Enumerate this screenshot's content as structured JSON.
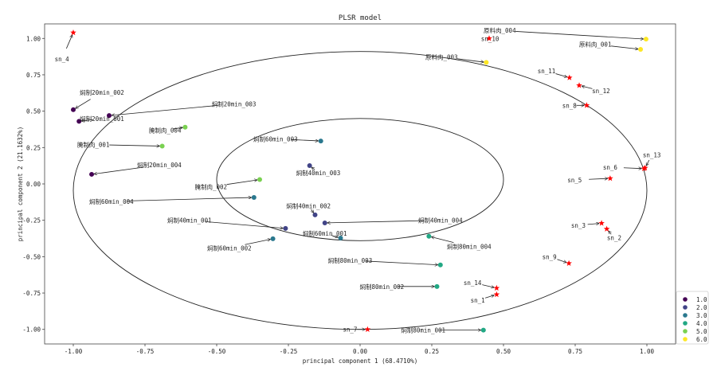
{
  "chart_data": {
    "type": "scatter",
    "title": "PLSR model",
    "xlabel": "principal component 1 (68.4710%)",
    "ylabel": "principal component 2 (21.1632%)",
    "xlim": [
      -1.1,
      1.1
    ],
    "ylim": [
      -1.1,
      1.1
    ],
    "xticks": [
      -1.0,
      -0.75,
      -0.5,
      -0.25,
      0.0,
      0.25,
      0.5,
      0.75,
      1.0
    ],
    "xtick_labels": [
      "-1.00",
      "-0.75",
      "-0.50",
      "-0.25",
      "0.00",
      "0.25",
      "0.50",
      "0.75",
      "1.00"
    ],
    "yticks": [
      -1.0,
      -0.75,
      -0.5,
      -0.25,
      0.0,
      0.25,
      0.5,
      0.75,
      1.0
    ],
    "ytick_labels": [
      "-1.00",
      "-0.75",
      "-0.50",
      "-0.25",
      "0.00",
      "0.25",
      "0.50",
      "0.75",
      "1.00"
    ],
    "grid": false,
    "legend_position": "outside-bottom-right",
    "legend": [
      {
        "label": "1.0",
        "color": "#440154"
      },
      {
        "label": "2.0",
        "color": "#414487"
      },
      {
        "label": "3.0",
        "color": "#2a788e"
      },
      {
        "label": "4.0",
        "color": "#22a884"
      },
      {
        "label": "5.0",
        "color": "#7ad151"
      },
      {
        "label": "6.0",
        "color": "#fde725"
      }
    ],
    "ellipses": [
      {
        "cx": 0.0,
        "cy": -0.045,
        "rx": 1.0,
        "ry": 0.955
      },
      {
        "cx": 0.0,
        "cy": 0.03,
        "rx": 0.5,
        "ry": 0.42
      }
    ],
    "samples": [
      {
        "name": "焖制20min_002",
        "group": 1,
        "x": -1.0,
        "y": 0.51,
        "lx": -0.9,
        "ly": 0.63
      },
      {
        "name": "焖制20min_001",
        "group": 1,
        "x": -0.98,
        "y": 0.43,
        "lx": -0.9,
        "ly": 0.45
      },
      {
        "name": "焖制20min_003",
        "group": 1,
        "x": -0.875,
        "y": 0.47,
        "lx": -0.44,
        "ly": 0.55
      },
      {
        "name": "焖制20min_004",
        "group": 1,
        "x": -0.936,
        "y": 0.066,
        "lx": -0.7,
        "ly": 0.13
      },
      {
        "name": "焖制40min_003",
        "group": 2,
        "x": -0.176,
        "y": 0.126,
        "lx": -0.146,
        "ly": 0.077
      },
      {
        "name": "焖制40min_002",
        "group": 2,
        "x": -0.157,
        "y": -0.213,
        "lx": -0.18,
        "ly": -0.15
      },
      {
        "name": "焖制40min_004",
        "group": 2,
        "x": -0.123,
        "y": -0.268,
        "lx": 0.28,
        "ly": -0.25
      },
      {
        "name": "焖制40min_001",
        "group": 2,
        "x": -0.26,
        "y": -0.306,
        "lx": -0.595,
        "ly": -0.25
      },
      {
        "name": "焖制60min_003",
        "group": 3,
        "x": -0.137,
        "y": 0.295,
        "lx": -0.295,
        "ly": 0.31
      },
      {
        "name": "焖制60min_004",
        "group": 3,
        "x": -0.37,
        "y": -0.093,
        "lx": -0.867,
        "ly": -0.12
      },
      {
        "name": "焖制60min_002",
        "group": 3,
        "x": -0.304,
        "y": -0.377,
        "lx": -0.456,
        "ly": -0.44
      },
      {
        "name": "焖制60min_001",
        "group": 3,
        "x": -0.068,
        "y": -0.372,
        "lx": -0.123,
        "ly": -0.34
      },
      {
        "name": "焖制80min_004",
        "group": 4,
        "x": 0.24,
        "y": -0.36,
        "lx": 0.38,
        "ly": -0.43
      },
      {
        "name": "焖制80min_003",
        "group": 4,
        "x": 0.28,
        "y": -0.557,
        "lx": -0.035,
        "ly": -0.525
      },
      {
        "name": "焖制80min_002",
        "group": 4,
        "x": 0.268,
        "y": -0.705,
        "lx": 0.076,
        "ly": -0.705
      },
      {
        "name": "焖制80min_001",
        "group": 4,
        "x": 0.43,
        "y": -1.005,
        "lx": 0.22,
        "ly": -1.005
      },
      {
        "name": "腌制肉_004",
        "group": 5,
        "x": -0.61,
        "y": 0.39,
        "lx": -0.68,
        "ly": 0.37
      },
      {
        "name": "腌制肉_001",
        "group": 5,
        "x": -0.69,
        "y": 0.26,
        "lx": -0.93,
        "ly": 0.27
      },
      {
        "name": "腌制肉_002",
        "group": 5,
        "x": -0.35,
        "y": 0.03,
        "lx": -0.52,
        "ly": -0.02
      },
      {
        "name": "原料肉_004",
        "group": 6,
        "x": 0.997,
        "y": 0.995,
        "lx": 0.487,
        "ly": 1.055
      },
      {
        "name": "原料肉_001",
        "group": 6,
        "x": 0.978,
        "y": 0.925,
        "lx": 0.82,
        "ly": 0.96
      },
      {
        "name": "原料肉_003",
        "group": 6,
        "x": 0.44,
        "y": 0.835,
        "lx": 0.284,
        "ly": 0.874
      }
    ],
    "stars_color": "#ff0000",
    "unknowns": [
      {
        "name": "sn_4",
        "x": -1.0,
        "y": 1.04,
        "lx": -1.04,
        "ly": 0.858
      },
      {
        "name": "sn_10",
        "x": 0.45,
        "y": 1.0,
        "lx": 0.453,
        "ly": 1.0
      },
      {
        "name": "sn_11",
        "x": 0.73,
        "y": 0.73,
        "lx": 0.65,
        "ly": 0.776
      },
      {
        "name": "sn_12",
        "x": 0.764,
        "y": 0.677,
        "lx": 0.84,
        "ly": 0.64
      },
      {
        "name": "sn_8",
        "x": 0.79,
        "y": 0.54,
        "lx": 0.73,
        "ly": 0.54
      },
      {
        "name": "sn_13",
        "x": 0.994,
        "y": 0.11,
        "lx": 1.017,
        "ly": 0.2
      },
      {
        "name": "sn_6",
        "x": 0.99,
        "y": 0.105,
        "lx": 0.872,
        "ly": 0.115
      },
      {
        "name": "sn_5",
        "x": 0.872,
        "y": 0.038,
        "lx": 0.748,
        "ly": 0.027
      },
      {
        "name": "sn_3",
        "x": 0.842,
        "y": -0.27,
        "lx": 0.761,
        "ly": -0.284
      },
      {
        "name": "sn_2",
        "x": 0.86,
        "y": -0.31,
        "lx": 0.886,
        "ly": -0.37
      },
      {
        "name": "sn_9",
        "x": 0.728,
        "y": -0.546,
        "lx": 0.66,
        "ly": -0.5
      },
      {
        "name": "sn_14",
        "x": 0.476,
        "y": -0.716,
        "lx": 0.392,
        "ly": -0.678
      },
      {
        "name": "sn_1",
        "x": 0.476,
        "y": -0.76,
        "lx": 0.41,
        "ly": -0.8
      },
      {
        "name": "sn_7",
        "x": 0.026,
        "y": -1.0,
        "lx": -0.035,
        "ly": -1.0
      }
    ]
  }
}
